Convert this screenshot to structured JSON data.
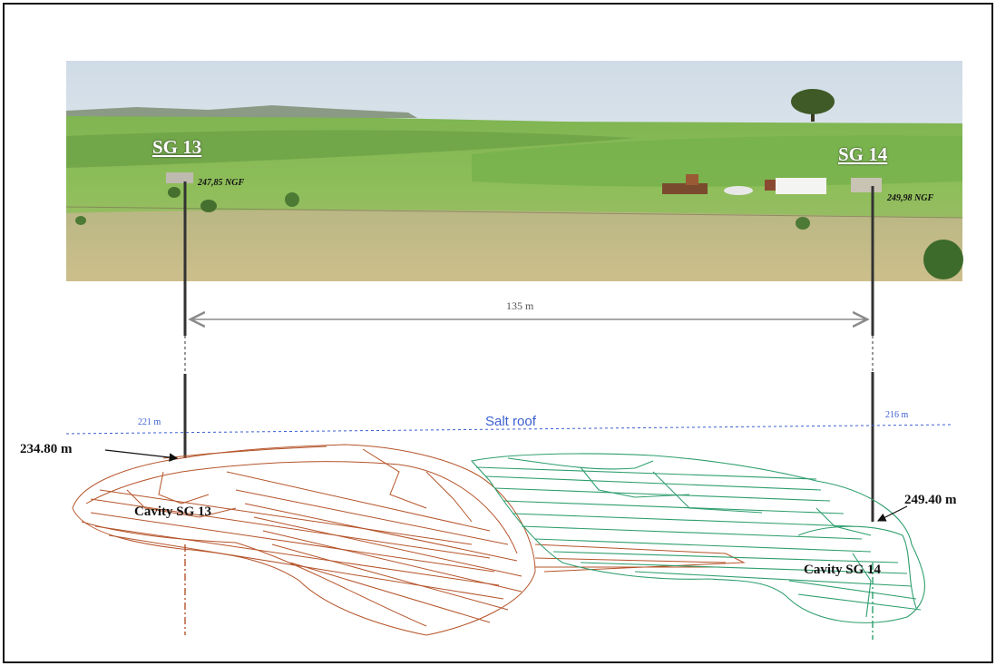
{
  "labels": {
    "sg13": "SG 13",
    "sg14": "SG 14",
    "elev_sg13": "247,85 NGF",
    "elev_sg14": "249,98 NGF",
    "distance": "135 m",
    "salt_roof": "Salt roof",
    "depth_roof_sg13": "221 m",
    "depth_roof_sg14": "216 m",
    "top_cavity_sg13": "234.80 m",
    "top_cavity_sg14": "249.40 m",
    "cavity_sg13": "Cavity SG 13",
    "cavity_sg14": "Cavity SG 14"
  },
  "colors": {
    "cavity_sg13": "#b5542a",
    "cavity_sg14": "#2e9e6e",
    "salt_roof": "#3b5fd1",
    "arrow": "#8a8a8a",
    "well": "#333333"
  }
}
